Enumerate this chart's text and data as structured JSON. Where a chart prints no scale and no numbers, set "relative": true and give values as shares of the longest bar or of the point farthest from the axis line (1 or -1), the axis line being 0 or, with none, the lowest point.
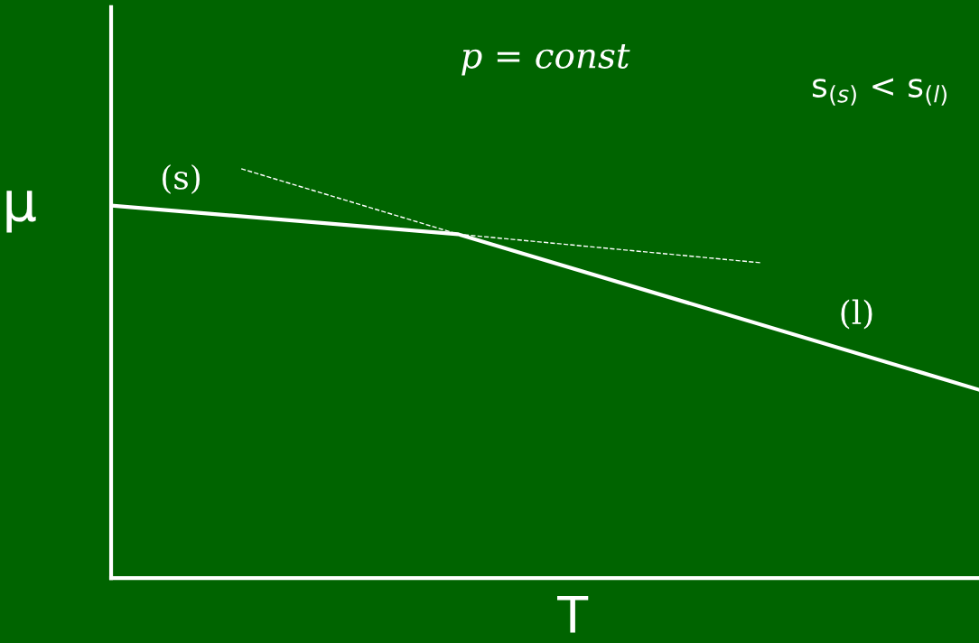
{
  "chart_data": {
    "type": "line",
    "title": "p = const",
    "xlabel": "T",
    "ylabel": "μ",
    "relative": true,
    "legend": false,
    "marker": "none",
    "categories": [
      null,
      null,
      null,
      null,
      null,
      null,
      null,
      null,
      null,
      null,
      null,
      null,
      null,
      null,
      null,
      null,
      null,
      null,
      null,
      null,
      null
    ],
    "series": [
      {
        "color": "#ffffff",
        "line_style": "solid",
        "values": [
          0.91,
          null,
          null,
          null,
          null,
          null,
          null,
          null,
          0.84,
          null,
          null,
          null,
          null,
          null,
          null,
          null,
          null,
          null,
          null,
          null,
          0.46
        ]
      },
      {
        "color": "#ffffff",
        "line_style": "dashed",
        "values": [
          null,
          null,
          null,
          1.0,
          null,
          null,
          null,
          null,
          0.84,
          null,
          null,
          null,
          null,
          null,
          null,
          0.77,
          null,
          null,
          null,
          null,
          null
        ]
      }
    ],
    "annotations": [
      "s$_{(s)}$ < s$_{(l)}$",
      "(s)",
      "(l)"
    ]
  }
}
